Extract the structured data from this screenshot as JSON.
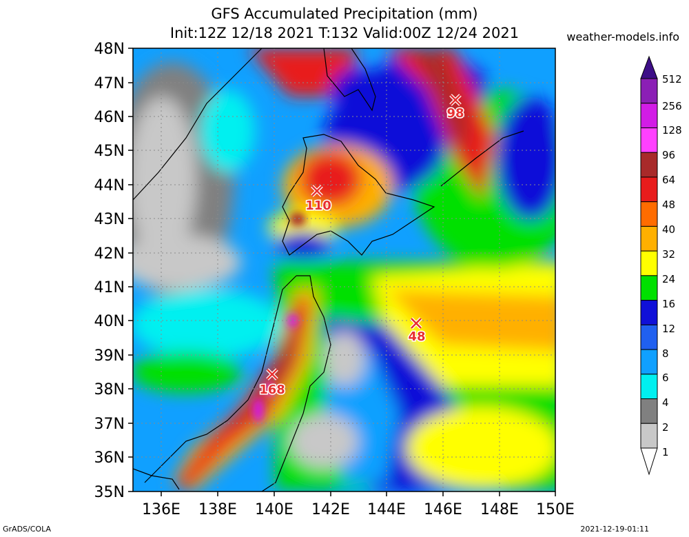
{
  "header": {
    "title": "GFS Accumulated Precipitation (mm)",
    "subtitle": "Init:12Z 12/18 2021 T:132 Valid:00Z 12/24 2021",
    "source": "weather-models.info"
  },
  "footer": {
    "left": "GrADS/COLA",
    "right": "2021-12-19-01:11"
  },
  "axes": {
    "lat_labels": [
      "48N",
      "47N",
      "46N",
      "45N",
      "44N",
      "43N",
      "42N",
      "41N",
      "40N",
      "39N",
      "38N",
      "37N",
      "36N",
      "35N"
    ],
    "lon_labels": [
      "136E",
      "138E",
      "140E",
      "142E",
      "144E",
      "146E",
      "148E",
      "150E"
    ]
  },
  "colorbar": {
    "levels": [
      "512",
      "256",
      "128",
      "96",
      "64",
      "48",
      "40",
      "32",
      "24",
      "16",
      "12",
      "8",
      "6",
      "4",
      "2",
      "1"
    ],
    "colors": [
      "#3d0e87",
      "#8b1fb5",
      "#d21ce6",
      "#ff40ff",
      "#a82a2a",
      "#e81c1c",
      "#ff6c00",
      "#ffb000",
      "#ffff00",
      "#00e000",
      "#1010d8",
      "#2060f0",
      "#10a0ff",
      "#00f0f0",
      "#808080",
      "#c8c8c8"
    ]
  },
  "markers": [
    {
      "name": "max-north",
      "label": "98",
      "lon": 146.5,
      "lat": 46.5
    },
    {
      "name": "max-hokkaido",
      "label": "110",
      "lon": 141.5,
      "lat": 43.8
    },
    {
      "name": "max-pacific",
      "label": "48",
      "lon": 145.0,
      "lat": 39.9
    },
    {
      "name": "max-honshu",
      "label": "168",
      "lon": 139.9,
      "lat": 38.4
    }
  ]
}
